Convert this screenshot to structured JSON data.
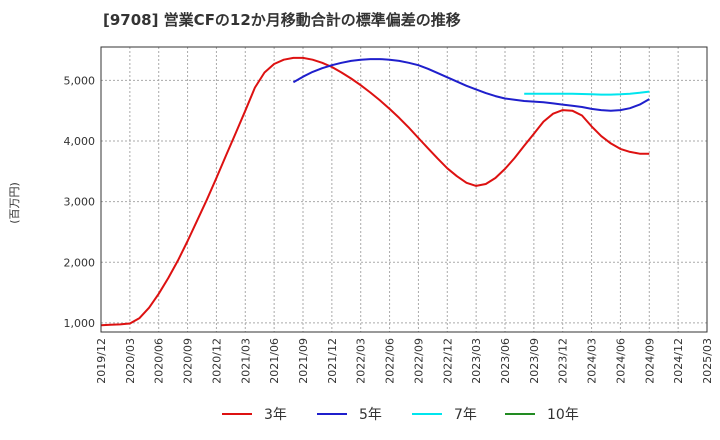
{
  "chart_data": {
    "type": "line",
    "title": "[9708]  営業CFの12か月移動合計の標準偏差の推移",
    "ylabel": "(百万円)",
    "xlabel": "",
    "ylim": [
      850,
      5550
    ],
    "yticks": [
      1000,
      2000,
      3000,
      4000,
      5000
    ],
    "ytick_labels": [
      "1,000",
      "2,000",
      "3,000",
      "4,000",
      "5,000"
    ],
    "xticks": [
      "2019/12",
      "2020/03",
      "2020/06",
      "2020/09",
      "2020/12",
      "2021/03",
      "2021/06",
      "2021/09",
      "2021/12",
      "2022/03",
      "2022/06",
      "2022/09",
      "2022/12",
      "2023/03",
      "2023/06",
      "2023/09",
      "2023/12",
      "2024/03",
      "2024/06",
      "2024/09",
      "2024/12",
      "2025/03"
    ],
    "grid": true,
    "legend_position": "bottom",
    "series": [
      {
        "name": "3年",
        "color": "#dd1111",
        "x": [
          "2019/12",
          "2020/01",
          "2020/02",
          "2020/03",
          "2020/04",
          "2020/05",
          "2020/06",
          "2020/07",
          "2020/08",
          "2020/09",
          "2020/10",
          "2020/11",
          "2020/12",
          "2021/01",
          "2021/02",
          "2021/03",
          "2021/04",
          "2021/05",
          "2021/06",
          "2021/07",
          "2021/08",
          "2021/09",
          "2021/10",
          "2021/11",
          "2021/12",
          "2022/01",
          "2022/02",
          "2022/03",
          "2022/04",
          "2022/05",
          "2022/06",
          "2022/07",
          "2022/08",
          "2022/09",
          "2022/10",
          "2022/11",
          "2022/12",
          "2023/01",
          "2023/02",
          "2023/03",
          "2023/04",
          "2023/05",
          "2023/06",
          "2023/07",
          "2023/08",
          "2023/09",
          "2023/10",
          "2023/11",
          "2023/12",
          "2024/01",
          "2024/02",
          "2024/03",
          "2024/04",
          "2024/05",
          "2024/06",
          "2024/07",
          "2024/08",
          "2024/09"
        ],
        "values": [
          960,
          970,
          975,
          990,
          1080,
          1250,
          1480,
          1740,
          2030,
          2350,
          2690,
          3030,
          3390,
          3760,
          4130,
          4500,
          4880,
          5130,
          5270,
          5340,
          5370,
          5370,
          5340,
          5290,
          5220,
          5130,
          5030,
          4920,
          4800,
          4670,
          4530,
          4380,
          4220,
          4050,
          3880,
          3710,
          3550,
          3420,
          3310,
          3260,
          3290,
          3390,
          3540,
          3720,
          3920,
          4120,
          4320,
          4450,
          4510,
          4500,
          4420,
          4240,
          4080,
          3960,
          3870,
          3820,
          3790,
          3790
        ]
      },
      {
        "name": "5年",
        "color": "#1f1fcc",
        "x": [
          "2021/08",
          "2021/09",
          "2021/10",
          "2021/11",
          "2021/12",
          "2022/01",
          "2022/02",
          "2022/03",
          "2022/04",
          "2022/05",
          "2022/06",
          "2022/07",
          "2022/08",
          "2022/09",
          "2022/10",
          "2022/11",
          "2022/12",
          "2023/01",
          "2023/02",
          "2023/03",
          "2023/04",
          "2023/05",
          "2023/06",
          "2023/07",
          "2023/08",
          "2023/09",
          "2023/10",
          "2023/11",
          "2023/12",
          "2024/01",
          "2024/02",
          "2024/03",
          "2024/04",
          "2024/05",
          "2024/06",
          "2024/07",
          "2024/08",
          "2024/09"
        ],
        "values": [
          4970,
          5060,
          5140,
          5200,
          5250,
          5290,
          5320,
          5340,
          5350,
          5350,
          5340,
          5320,
          5290,
          5250,
          5190,
          5120,
          5050,
          4980,
          4910,
          4850,
          4790,
          4740,
          4700,
          4680,
          4660,
          4650,
          4640,
          4620,
          4600,
          4580,
          4560,
          4530,
          4510,
          4500,
          4510,
          4540,
          4600,
          4690
        ]
      },
      {
        "name": "7年",
        "color": "#00e5ee",
        "x": [
          "2023/08",
          "2023/09",
          "2023/10",
          "2023/11",
          "2023/12",
          "2024/01",
          "2024/02",
          "2024/03",
          "2024/04",
          "2024/05",
          "2024/06",
          "2024/07",
          "2024/08",
          "2024/09"
        ],
        "values": [
          4780,
          4780,
          4780,
          4780,
          4780,
          4780,
          4775,
          4770,
          4765,
          4765,
          4770,
          4780,
          4795,
          4815
        ]
      },
      {
        "name": "10年",
        "color": "#228b22",
        "x": [],
        "values": []
      }
    ]
  }
}
